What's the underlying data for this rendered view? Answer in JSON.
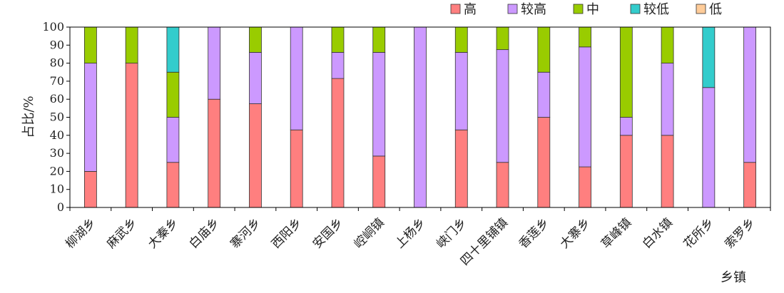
{
  "chart_data": {
    "type": "bar",
    "stacked": true,
    "xlabel": "乡镇",
    "ylabel": "占比/%",
    "ylim": [
      0,
      100
    ],
    "yticks": [
      0,
      10,
      20,
      30,
      40,
      50,
      60,
      70,
      80,
      90,
      100
    ],
    "grid": false,
    "legend_position": "top-right",
    "categories": [
      "柳湖乡",
      "麻武乡",
      "大秦乡",
      "白庙乡",
      "寨河乡",
      "西阳乡",
      "安国乡",
      "崆峒镇",
      "上杨乡",
      "峡门乡",
      "四十里铺镇",
      "香莲乡",
      "大寨乡",
      "草峰镇",
      "白水镇",
      "花所乡",
      "索罗乡"
    ],
    "series": [
      {
        "name": "高",
        "color": "#ff7f7f",
        "values": [
          20,
          80,
          25,
          60,
          57.5,
          43,
          71.5,
          28.5,
          0,
          43,
          25,
          50,
          22.5,
          40,
          40,
          0,
          25
        ]
      },
      {
        "name": "较高",
        "color": "#cc99ff",
        "values": [
          60,
          0,
          25,
          40,
          28.5,
          57,
          14.5,
          57.5,
          100,
          43,
          62.5,
          25,
          66.5,
          10,
          40,
          66.5,
          75
        ]
      },
      {
        "name": "中",
        "color": "#99cc00",
        "values": [
          20,
          20,
          25,
          0,
          14,
          0,
          14,
          14,
          0,
          14,
          12.5,
          25,
          11,
          50,
          20,
          0,
          0
        ]
      },
      {
        "name": "较低",
        "color": "#33cccc",
        "values": [
          0,
          0,
          25,
          0,
          0,
          0,
          0,
          0,
          0,
          0,
          0,
          0,
          0,
          0,
          0,
          33.5,
          0
        ]
      },
      {
        "name": "低",
        "color": "#ffcc99",
        "values": [
          0,
          0,
          0,
          0,
          0,
          0,
          0,
          0,
          0,
          0,
          0,
          0,
          0,
          0,
          0,
          0,
          0
        ]
      }
    ]
  }
}
